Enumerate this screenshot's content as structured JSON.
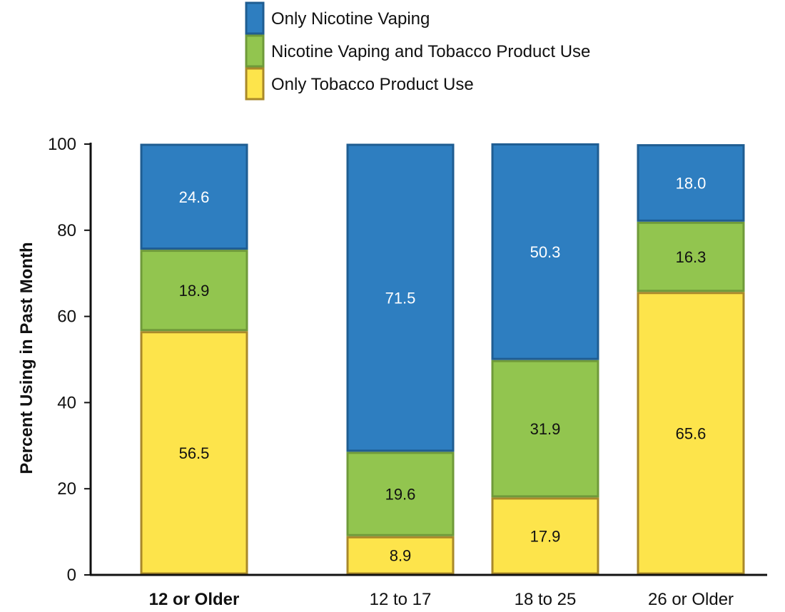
{
  "chart_data": {
    "type": "bar",
    "stacked": true,
    "ylabel": "Percent Using in Past Month",
    "ylim": [
      0,
      100
    ],
    "y_ticks": [
      0,
      20,
      40,
      60,
      80,
      100
    ],
    "grid": false,
    "legend_placement": "top-center",
    "categories": [
      "12 or Older",
      "12 to 17",
      "18 to 25",
      "26 or Older"
    ],
    "category_bold": [
      true,
      false,
      false,
      false
    ],
    "series": [
      {
        "name": "Only Tobacco Product Use",
        "values": [
          56.5,
          8.9,
          17.9,
          65.6
        ],
        "color": "#fde44b",
        "border": "#a9892a",
        "label_color": "#111111"
      },
      {
        "name": "Nicotine Vaping and Tobacco Product Use",
        "values": [
          18.9,
          19.6,
          31.9,
          16.3
        ],
        "color": "#92c54f",
        "border": "#6f9a3a",
        "label_color": "#111111"
      },
      {
        "name": "Only Nicotine Vaping",
        "values": [
          24.6,
          71.5,
          50.3,
          18.0
        ],
        "color": "#2e7ec0",
        "border": "#1f5d92",
        "label_color": "#ffffff"
      }
    ],
    "legend_order": [
      "Only Nicotine Vaping",
      "Nicotine Vaping and Tobacco Product Use",
      "Only Tobacco Product Use"
    ]
  }
}
